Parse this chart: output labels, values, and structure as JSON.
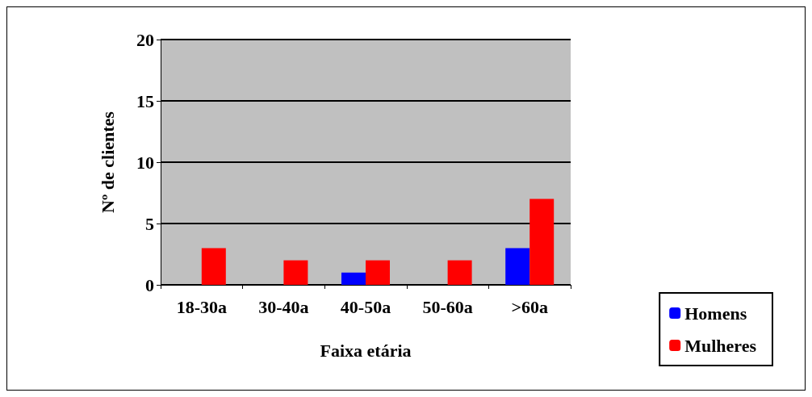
{
  "chart_data": {
    "type": "bar",
    "xlabel": "Faixa etária",
    "ylabel": "Nº de clientes",
    "categories": [
      "18-30a",
      "30-40a",
      "40-50a",
      "50-60a",
      ">60a"
    ],
    "series": [
      {
        "name": "Homens",
        "color": "#0000ff",
        "values": [
          0,
          0,
          1,
          0,
          3
        ]
      },
      {
        "name": "Mulheres",
        "color": "#ff0000",
        "values": [
          3,
          2,
          2,
          2,
          7
        ]
      }
    ],
    "ylim": [
      0,
      20
    ],
    "yticks": [
      0,
      5,
      10,
      15,
      20
    ],
    "grid": "y",
    "legend": "bottom right"
  }
}
